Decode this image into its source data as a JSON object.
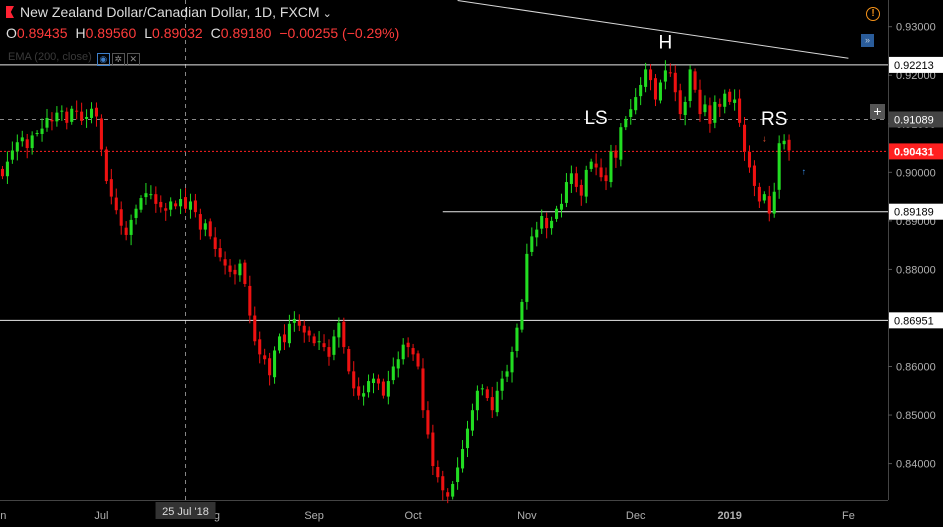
{
  "header": {
    "symbol_title": "New Zealand Dollar/Canadian Dollar, 1D, FXCM",
    "ohlc": [
      {
        "k": "O",
        "v": "0.89435"
      },
      {
        "k": "H",
        "v": "0.89560"
      },
      {
        "k": "L",
        "v": "0.89032"
      },
      {
        "k": "C",
        "v": "0.89180"
      }
    ],
    "change": "−0.00255 (−0.29%)",
    "indicator": "EMA (200, close)"
  },
  "colors": {
    "up": "#22dd22",
    "down": "#ee1111",
    "background": "#000000",
    "price_line": "#ff2020",
    "alert_icon": "#f7931a"
  },
  "icons": [
    "flag-icon",
    "chevron-down-icon",
    "alert-icon",
    "scroll-to-end-icon",
    "plus-icon",
    "eye-icon",
    "gear-icon",
    "close-icon"
  ],
  "chart_data": {
    "type": "candlestick",
    "title": "New Zealand Dollar/Canadian Dollar, 1D, FXCM",
    "y_axis": {
      "ticks": [
        "0.93000",
        "0.92000",
        "0.91000",
        "0.90000",
        "0.89000",
        "0.88000",
        "0.87000",
        "0.86000",
        "0.85000",
        "0.84000"
      ],
      "range": [
        0.8325,
        0.9355
      ]
    },
    "x_axis": {
      "ticks": [
        {
          "label": "Jun",
          "index": 0
        },
        {
          "label": "Jul",
          "index": 21
        },
        {
          "label": "Aug",
          "index": 43
        },
        {
          "label": "Sep",
          "index": 64
        },
        {
          "label": "Oct",
          "index": 84
        },
        {
          "label": "Nov",
          "index": 107
        },
        {
          "label": "Dec",
          "index": 129
        },
        {
          "label": "2019",
          "index": 148
        },
        {
          "label": "Fe",
          "index": 172
        }
      ],
      "crosshair_label": "25 Jul '18",
      "crosshair_index": 38,
      "range": [
        0.5,
        180
      ]
    },
    "price_labels": [
      {
        "value": 0.92213,
        "text": "0.92213",
        "kind": "level"
      },
      {
        "value": 0.91089,
        "text": "0.91089",
        "kind": "cursor"
      },
      {
        "value": 0.90431,
        "text": "0.90431",
        "kind": "current"
      },
      {
        "value": 0.89189,
        "text": "0.89189",
        "kind": "level"
      },
      {
        "value": 0.86951,
        "text": "0.86951",
        "kind": "level"
      }
    ],
    "levels": [
      {
        "value": 0.92213,
        "from_index": 0
      },
      {
        "value": 0.89189,
        "from_index": 90
      },
      {
        "value": 0.86951,
        "from_index": 0
      }
    ],
    "current_price": 0.90431,
    "cursor_price": 0.91089,
    "trendline": {
      "from": {
        "index": 93,
        "value": 0.9354
      },
      "to": {
        "index": 172,
        "value": 0.9235
      }
    },
    "annotations": [
      {
        "text": "LS",
        "index": 121,
        "value": 0.91
      },
      {
        "text": "H",
        "index": 135,
        "value": 0.9255
      },
      {
        "text": "RS",
        "index": 157,
        "value": 0.9098
      }
    ],
    "candles_close": [
      0.8992,
      0.9022,
      0.9045,
      0.9062,
      0.9072,
      0.905,
      0.9076,
      0.9081,
      0.909,
      0.9112,
      0.9105,
      0.9123,
      0.9127,
      0.9102,
      0.9131,
      0.9125,
      0.9106,
      0.9114,
      0.9131,
      0.9115,
      0.9047,
      0.8982,
      0.895,
      0.8922,
      0.889,
      0.8871,
      0.8902,
      0.8925,
      0.8947,
      0.8957,
      0.8955,
      0.8935,
      0.8928,
      0.8921,
      0.894,
      0.893,
      0.8945,
      0.8925,
      0.894,
      0.8918,
      0.8882,
      0.8895,
      0.8868,
      0.8842,
      0.8825,
      0.8808,
      0.8795,
      0.879,
      0.8812,
      0.877,
      0.8705,
      0.8652,
      0.8625,
      0.8615,
      0.8582,
      0.8633,
      0.8662,
      0.865,
      0.8688,
      0.8698,
      0.8684,
      0.867,
      0.8664,
      0.8648,
      0.8652,
      0.864,
      0.862,
      0.8662,
      0.869,
      0.864,
      0.859,
      0.8555,
      0.854,
      0.8545,
      0.857,
      0.8575,
      0.8565,
      0.854,
      0.857,
      0.86,
      0.8615,
      0.8645,
      0.864,
      0.8625,
      0.86,
      0.851,
      0.846,
      0.8395,
      0.8372,
      0.8345,
      0.8332,
      0.8358,
      0.8392,
      0.843,
      0.8472,
      0.851,
      0.855,
      0.8555,
      0.8535,
      0.851,
      0.855,
      0.8575,
      0.859,
      0.863,
      0.868,
      0.8733,
      0.8832,
      0.8868,
      0.8882,
      0.891,
      0.8885,
      0.89,
      0.8925,
      0.8935,
      0.898,
      0.8998,
      0.897,
      0.8952,
      0.9005,
      0.9022,
      0.901,
      0.899,
      0.8982,
      0.9043,
      0.903,
      0.9093,
      0.911,
      0.913,
      0.9155,
      0.918,
      0.9212,
      0.919,
      0.915,
      0.9185,
      0.921,
      0.9205,
      0.9165,
      0.912,
      0.9145,
      0.9212,
      0.917,
      0.912,
      0.914,
      0.91,
      0.9145,
      0.9135,
      0.9162,
      0.9145,
      0.915,
      0.9102,
      0.9042,
      0.901,
      0.8972,
      0.894,
      0.8955,
      0.8915,
      0.896,
      0.906,
      0.9065,
      0.9045
    ]
  }
}
